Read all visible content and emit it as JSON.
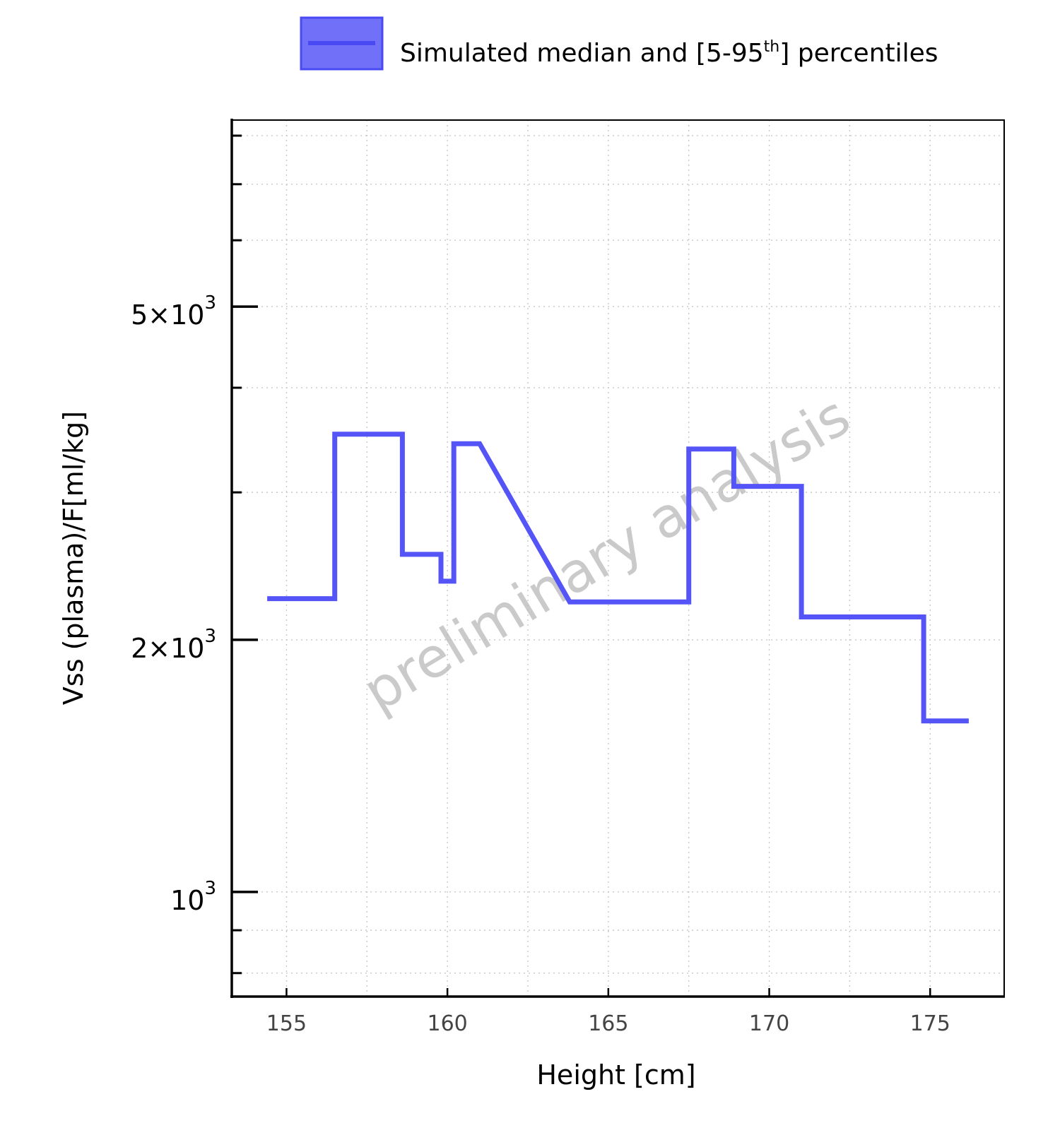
{
  "chart_data": {
    "type": "line",
    "step": true,
    "xlabel": "Height [cm]",
    "ylabel": "Vss (plasma)/F[ml/kg]",
    "yscale": "log",
    "xlim": [
      153.3,
      177.3
    ],
    "ylim": [
      750,
      8350
    ],
    "xticks": [
      155,
      160,
      165,
      170,
      175
    ],
    "xtick_labels": [
      "155",
      "160",
      "165",
      "170",
      "175"
    ],
    "yticks": [
      {
        "value": 1000,
        "mantissa": "",
        "base": "10",
        "exp": "3"
      },
      {
        "value": 2000,
        "mantissa": "2",
        "base": "10",
        "exp": "3"
      },
      {
        "value": 5000,
        "mantissa": "5",
        "base": "10",
        "exp": "3"
      }
    ],
    "grid": true,
    "legend": {
      "placement": "top-center",
      "label_main": "Simulated median and [5-95",
      "label_sup": "th",
      "label_end": "] percentiles"
    },
    "watermark": "preliminary analysis",
    "series": [
      {
        "name": "Simulated median and [5-95th] percentiles",
        "color": "#5555f7",
        "points": [
          [
            154.4,
            2240
          ],
          [
            156.5,
            2240
          ],
          [
            156.5,
            3520
          ],
          [
            158.6,
            3520
          ],
          [
            158.6,
            2530
          ],
          [
            159.8,
            2530
          ],
          [
            159.8,
            2350
          ],
          [
            160.2,
            2350
          ],
          [
            160.2,
            3430
          ],
          [
            161.0,
            3430
          ],
          [
            163.8,
            2220
          ],
          [
            167.5,
            2220
          ],
          [
            167.5,
            3380
          ],
          [
            168.9,
            3380
          ],
          [
            168.9,
            3050
          ],
          [
            171.0,
            3050
          ],
          [
            171.0,
            2130
          ],
          [
            174.8,
            2130
          ],
          [
            174.8,
            1600
          ],
          [
            176.2,
            1600
          ]
        ]
      }
    ]
  }
}
